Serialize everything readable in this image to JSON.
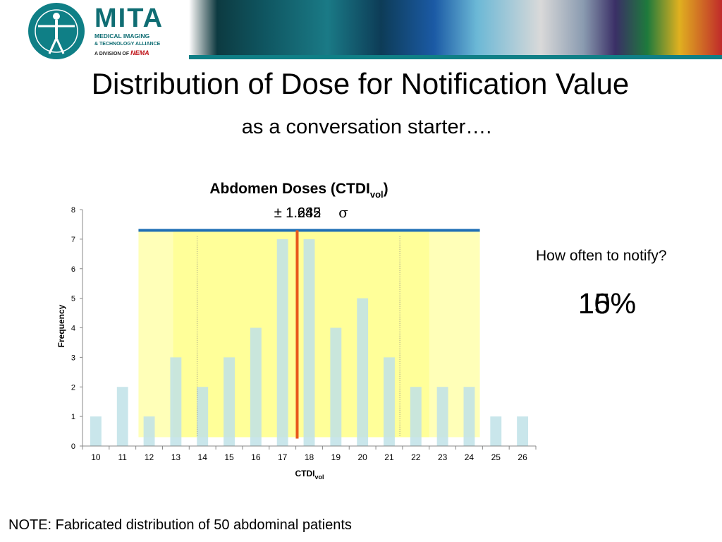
{
  "header": {
    "brand": "MITA",
    "sub_line1": "MEDICAL IMAGING",
    "sub_line2": "& TECHNOLOGY ALLIANCE",
    "division_prefix": "A DIVISION OF",
    "division_name": "NEMA",
    "accent_color": "#0f7f86"
  },
  "slide": {
    "title": "Distribution of Dose for Notification Value",
    "subtitle": "as a conversation starter….",
    "question": "How often to notify?",
    "percentages": [
      "10%",
      "15%"
    ],
    "footnote": "NOTE: Fabricated distribution of 50 abdominal patients"
  },
  "chart_data": {
    "type": "bar",
    "title_main": "Abdomen Doses (CTDI",
    "title_sub": "vol",
    "title_end": ")",
    "xlabel_main": "CTDI",
    "xlabel_sub": "vol",
    "ylabel": "Frequency",
    "ylim": [
      0,
      8
    ],
    "yticks": [
      "0",
      "1",
      "2",
      "3",
      "4",
      "5",
      "6",
      "7",
      "8"
    ],
    "categories": [
      "10",
      "11",
      "12",
      "13",
      "14",
      "15",
      "16",
      "17",
      "18",
      "19",
      "20",
      "21",
      "22",
      "23",
      "24",
      "25",
      "26"
    ],
    "values": [
      1,
      2,
      1,
      3,
      2,
      3,
      4,
      7,
      7,
      4,
      5,
      3,
      2,
      2,
      2,
      1,
      1
    ],
    "bar_color": "#bfe2e8",
    "annotation_labels": [
      "± 1.282",
      "± 1.645",
      "σ"
    ],
    "bands": [
      {
        "from": 11.6,
        "to": 24.4,
        "fill": "#ffffb8"
      },
      {
        "from": 12.9,
        "to": 22.5,
        "fill": "#ffff99"
      }
    ],
    "band_line_color": "#1f6fb5",
    "mean": 17.55,
    "mean_color": "#e8581c",
    "dotted_lines": [
      13.8,
      21.4
    ],
    "grid": false
  }
}
